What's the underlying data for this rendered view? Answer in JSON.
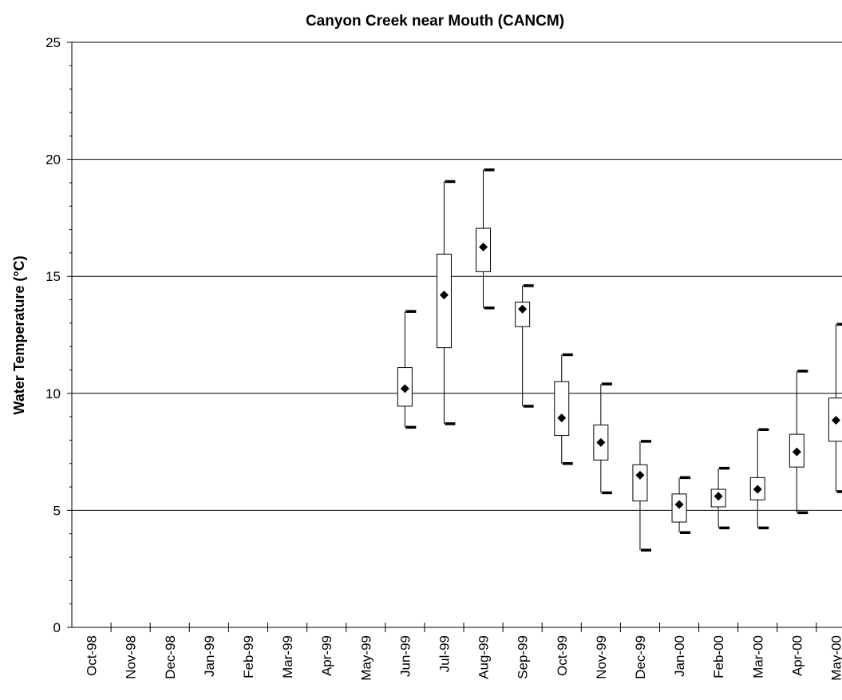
{
  "chart_data": {
    "type": "box",
    "title": "Canyon Creek near Mouth (CANCM)",
    "y_label": "Water Temperature (°C)",
    "categories": [
      "Oct-98",
      "Nov-98",
      "Dec-98",
      "Jan-99",
      "Feb-99",
      "Mar-99",
      "Apr-99",
      "May-99",
      "Jun-99",
      "Jul-99",
      "Aug-99",
      "Sep-99",
      "Oct-99",
      "Nov-99",
      "Dec-99",
      "Jan-00",
      "Feb-00",
      "Mar-00",
      "Apr-00",
      "May-00"
    ],
    "max": [
      null,
      null,
      null,
      null,
      null,
      null,
      null,
      null,
      13.5,
      19.05,
      19.55,
      14.6,
      11.65,
      10.4,
      7.95,
      6.4,
      6.8,
      8.45,
      10.95,
      12.95
    ],
    "q3": [
      null,
      null,
      null,
      null,
      null,
      null,
      null,
      null,
      11.1,
      15.95,
      17.05,
      13.9,
      10.5,
      8.65,
      6.95,
      5.7,
      5.9,
      6.4,
      8.25,
      9.8
    ],
    "mean": [
      null,
      null,
      null,
      null,
      null,
      null,
      null,
      null,
      10.2,
      14.2,
      16.25,
      13.6,
      8.95,
      7.9,
      6.5,
      5.25,
      5.6,
      5.9,
      7.5,
      8.85
    ],
    "q1": [
      null,
      null,
      null,
      null,
      null,
      null,
      null,
      null,
      9.45,
      11.95,
      15.2,
      12.85,
      8.2,
      7.15,
      5.4,
      4.5,
      5.15,
      5.45,
      6.85,
      7.95
    ],
    "min": [
      null,
      null,
      null,
      null,
      null,
      null,
      null,
      null,
      8.55,
      8.7,
      13.65,
      9.45,
      7.0,
      5.75,
      3.3,
      4.05,
      4.25,
      4.25,
      4.9,
      5.8
    ],
    "ylim": [
      0,
      25
    ],
    "yticks": [
      0,
      5,
      10,
      15,
      20,
      25
    ],
    "grid": true,
    "color": "#000000"
  }
}
